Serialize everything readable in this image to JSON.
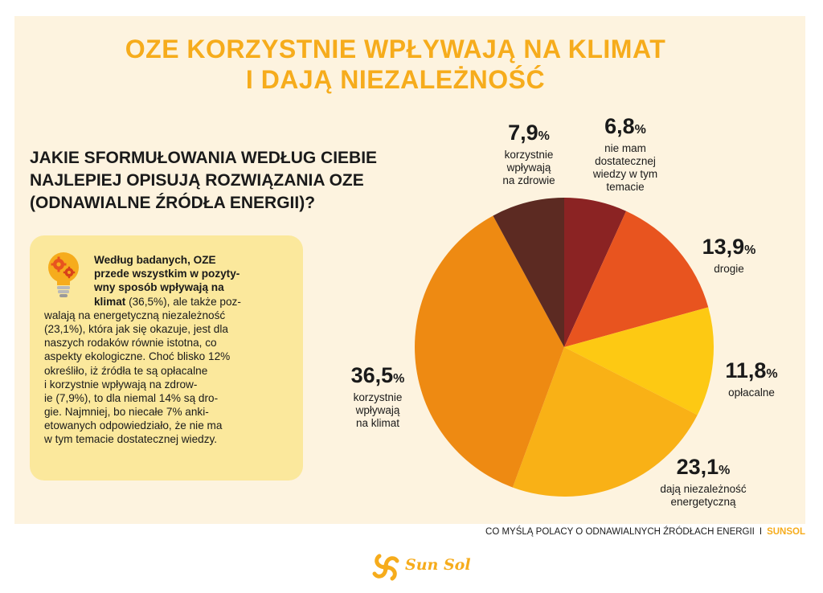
{
  "title": {
    "line1": "OZE KORZYSTNIE WPŁYWAJĄ NA KLIMAT",
    "line2": "I DAJĄ NIEZALEŻNOŚĆ"
  },
  "question": {
    "line1": "JAKIE SFORMUŁOWANIA WEDŁUG CIEBIE",
    "line2": "NAJLEPIEJ OPISUJĄ ROZWIĄZANIA OZE",
    "line3": "(ODNAWIALNE ŹRÓDŁA ENERGII)?"
  },
  "info": {
    "lines": [
      "Według badanych, OZE",
      "przede wszystkim w pozyty-",
      "wny sposób wpływają na",
      "klimat (36,5%), ale także poz-",
      "walają na energetyczną niezależność",
      "(23,1%), która jak się okazuje, jest dla",
      "naszych rodaków równie istotna, co",
      "aspekty ekologiczne. Choć blisko 12%",
      "określiło, iż źródła te są opłacalne",
      "i korzystnie wpływają na zdrow-",
      "ie (7,9%), to dla niemal 14% są dro-",
      "gie. Najmniej, bo niecałe 7% anki-",
      "etowanych odpowiedziało, że nie ma",
      "w tym temacie dostatecznej wiedzy."
    ],
    "bold_line4": "klimat",
    "rest_line4": " (36,5%), ale także poz-"
  },
  "chart_data": {
    "type": "pie",
    "start_angle_deg": 90,
    "direction": "clockwise",
    "slices": [
      {
        "value": 6.8,
        "label": "6,8",
        "unit": "%",
        "description": [
          "nie mam",
          "dostatecznej",
          "wiedzy w tym",
          "temacie"
        ],
        "color": "#8b2323"
      },
      {
        "value": 13.9,
        "label": "13,9",
        "unit": "%",
        "description": [
          "drogie"
        ],
        "color": "#e8541f"
      },
      {
        "value": 11.8,
        "label": "11,8",
        "unit": "%",
        "description": [
          "opłacalne"
        ],
        "color": "#fdc913"
      },
      {
        "value": 23.1,
        "label": "23,1",
        "unit": "%",
        "description": [
          "dają niezależność",
          "energetyczną"
        ],
        "color": "#f9b116"
      },
      {
        "value": 36.5,
        "label": "36,5",
        "unit": "%",
        "description": [
          "korzystnie",
          "wpływają",
          "na klimat"
        ],
        "color": "#ee8a12"
      },
      {
        "value": 7.9,
        "label": "7,9",
        "unit": "%",
        "description": [
          "korzystnie",
          "wpływają",
          "na zdrowie"
        ],
        "color": "#5c2a22"
      }
    ]
  },
  "footer": {
    "text": "CO MYŚLĄ POLACY O ODNAWIALNYCH ŹRÓDŁACH ENERGII",
    "separator": "I",
    "brand": "SUNSOL"
  },
  "logo": {
    "text": "Sun Sol",
    "color": "#f6ac1c"
  }
}
